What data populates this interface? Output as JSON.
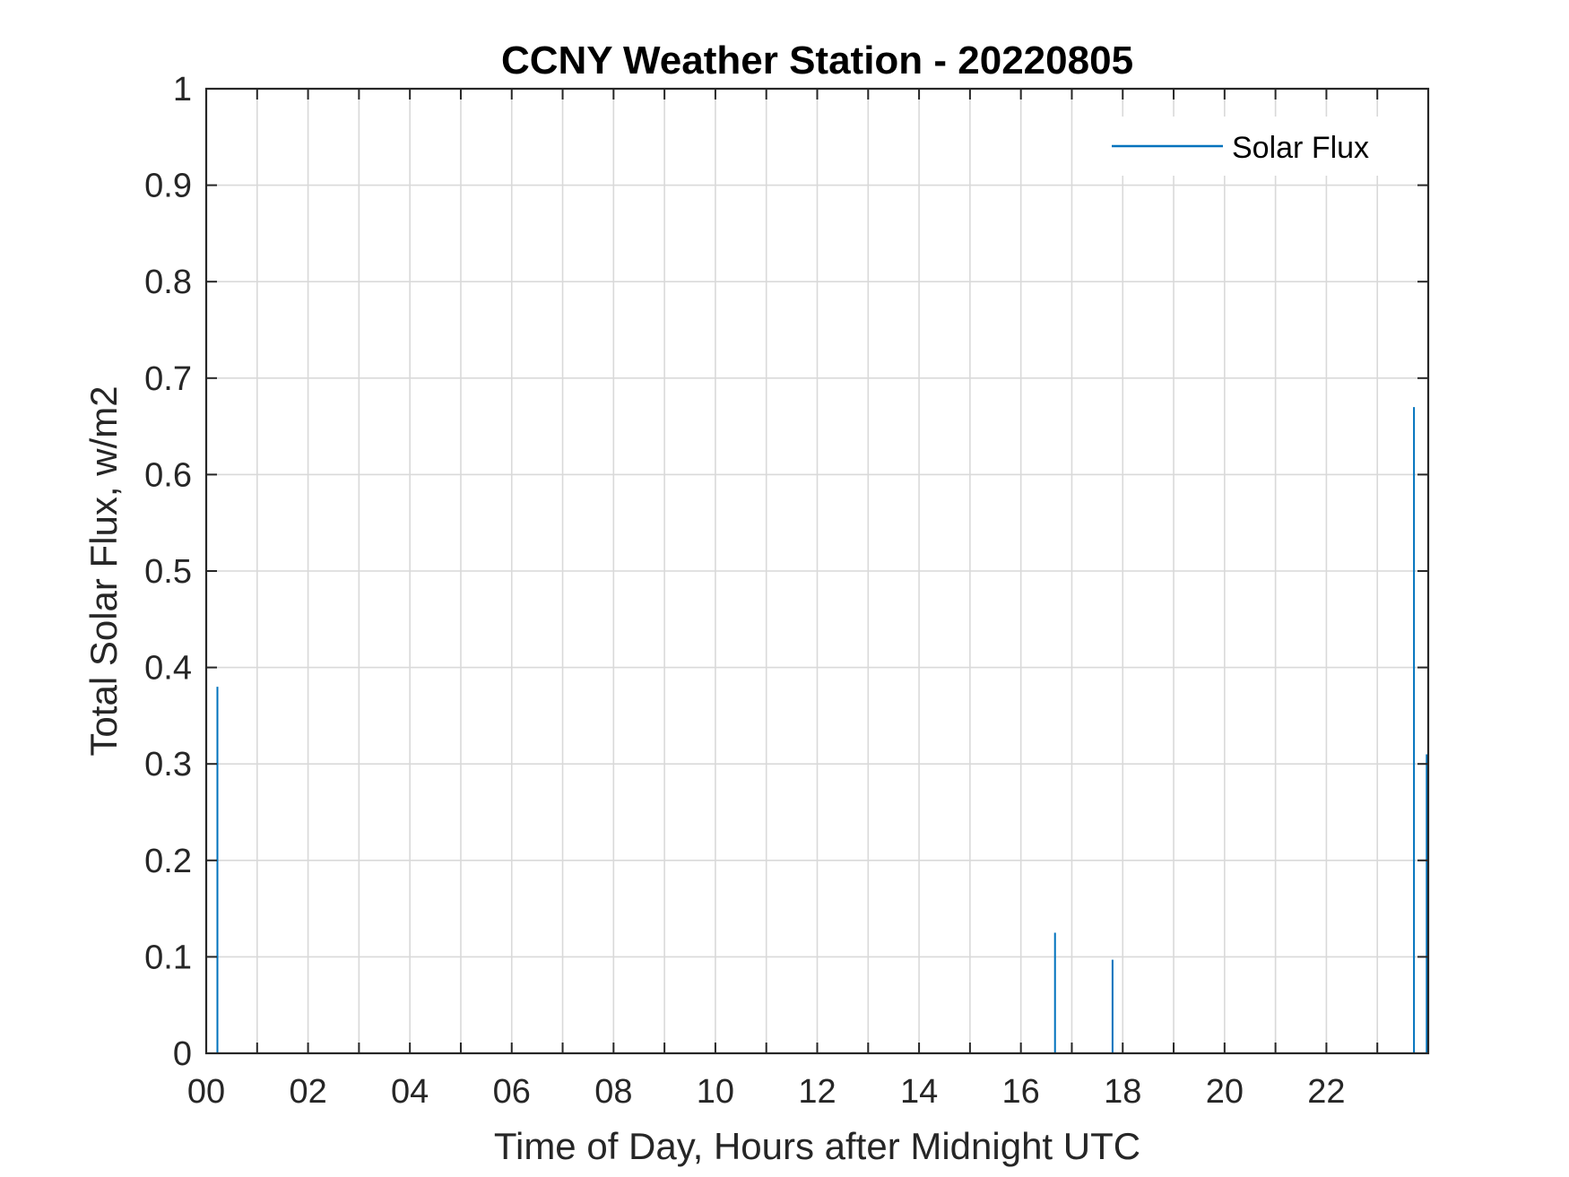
{
  "chart_data": {
    "type": "line",
    "title": "CCNY Weather Station - 20220805",
    "xlabel": "Time of Day, Hours after Midnight UTC",
    "ylabel": "Total Solar Flux, w/m2",
    "xlim": [
      0,
      24
    ],
    "ylim": [
      0,
      1
    ],
    "x_tick_values": [
      0,
      2,
      4,
      6,
      8,
      10,
      12,
      14,
      16,
      18,
      20,
      22
    ],
    "x_tick_labels": [
      "00",
      "02",
      "04",
      "06",
      "08",
      "10",
      "12",
      "14",
      "16",
      "18",
      "20",
      "22"
    ],
    "x_minor_ticks": [
      1,
      3,
      5,
      7,
      9,
      11,
      13,
      15,
      17,
      19,
      21,
      23
    ],
    "y_tick_values": [
      0,
      0.1,
      0.2,
      0.3,
      0.4,
      0.5,
      0.6,
      0.7,
      0.8,
      0.9,
      1
    ],
    "y_tick_labels": [
      "0",
      "0.1",
      "0.2",
      "0.3",
      "0.4",
      "0.5",
      "0.6",
      "0.7",
      "0.8",
      "0.9",
      "1"
    ],
    "grid": true,
    "legend_position": "top-right",
    "series": [
      {
        "name": "Solar Flux",
        "color": "#0072BD",
        "spikes": [
          {
            "x": 0.22,
            "y": 0.38
          },
          {
            "x": 16.67,
            "y": 0.125
          },
          {
            "x": 17.8,
            "y": 0.097
          },
          {
            "x": 23.72,
            "y": 0.67
          },
          {
            "x": 23.97,
            "y": 0.31
          }
        ]
      }
    ]
  }
}
